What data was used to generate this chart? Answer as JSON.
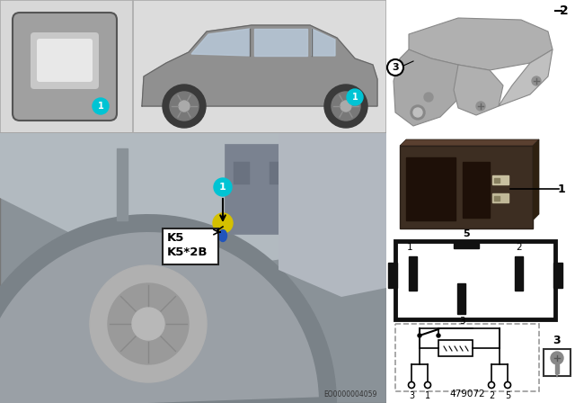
{
  "bg": "#ffffff",
  "top_panel_bg": "#dcdcdc",
  "engine_bg": "#9da5aa",
  "right_bg": "#ffffff",
  "cyan": "#00c4d4",
  "k5_text": "K5\nK5*2B",
  "eo_text": "EO0000004059",
  "part_num": "479072",
  "relay_dark": "#3d2e22",
  "relay_med": "#5a4535",
  "bracket_gray": "#a8a8a8",
  "connector_border": "#111111",
  "dashed_box": "#999999",
  "screw_gray": "#888888",
  "label_line_color": "#222222",
  "car_body": "#909090",
  "car_dark": "#666666",
  "car_window": "#b8c8d8",
  "wheel_dark": "#3a3a3a",
  "wheel_rim": "#aaaaaa"
}
